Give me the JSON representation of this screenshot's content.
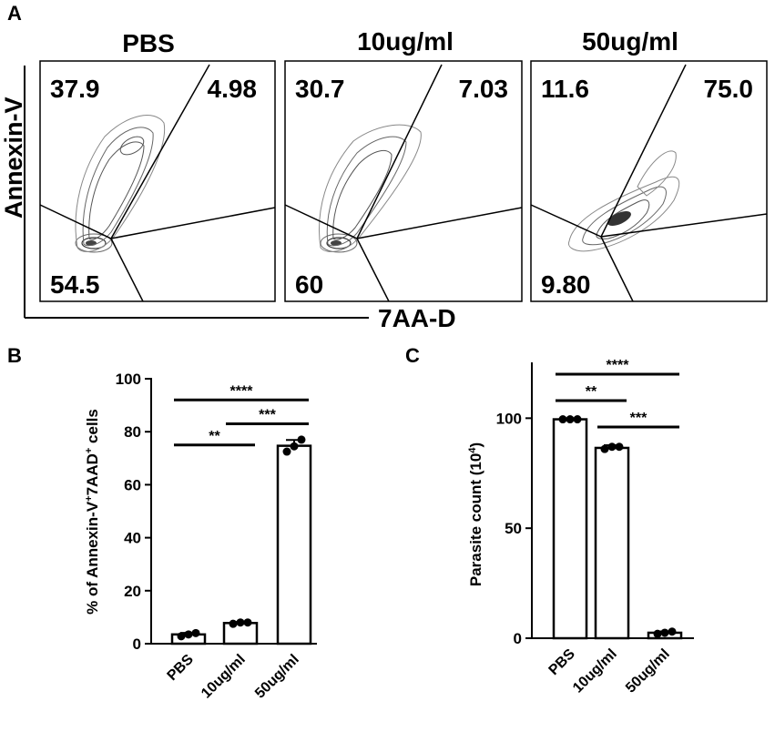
{
  "panel_letters": {
    "a": "A",
    "b": "B",
    "c": "C"
  },
  "flow": {
    "y_axis_label": "Annexin-V",
    "x_axis_label": "7AA-D",
    "panels": [
      {
        "title": "PBS",
        "q_ul": "37.9",
        "q_ur": "4.98",
        "q_ll": "54.5"
      },
      {
        "title": "10ug/ml",
        "q_ul": "30.7",
        "q_ur": "7.03",
        "q_ll": "60"
      },
      {
        "title": "50ug/ml",
        "q_ul": "11.6",
        "q_ur": "75.0",
        "q_ll": "9.80"
      }
    ]
  },
  "chart_data": [
    {
      "type": "bar",
      "panel": "B",
      "categories": [
        "PBS",
        "10ug/ml",
        "50ug/ml"
      ],
      "values": [
        3.5,
        7.8,
        74.7
      ],
      "error": [
        0.6,
        0.4,
        2.2
      ],
      "points": [
        [
          2.8,
          3.5,
          4.0
        ],
        [
          7.5,
          8.0,
          8.0
        ],
        [
          72.5,
          74.5,
          77.0
        ]
      ],
      "ylabel_main": "% of Annexin-V",
      "ylabel_sup1": "+",
      "ylabel_mid": "7AAD",
      "ylabel_sup2": "+",
      "ylabel_end": " cells",
      "ylim": [
        0,
        100
      ],
      "yticks": [
        "0",
        "20",
        "40",
        "60",
        "80",
        "100"
      ],
      "significance": [
        {
          "from": 0,
          "to": 2,
          "label": "****",
          "y": 92
        },
        {
          "from": 0,
          "to": 1,
          "label": "**",
          "y": 75
        },
        {
          "from": 1,
          "to": 2,
          "label": "***",
          "y": 83
        }
      ]
    },
    {
      "type": "bar",
      "panel": "C",
      "categories": [
        "PBS",
        "10ug/ml",
        "50ug/ml"
      ],
      "values": [
        99.5,
        86.5,
        2.5
      ],
      "error": [
        0.5,
        1.2,
        0.6
      ],
      "points": [
        [
          99.5,
          99.5,
          99.5
        ],
        [
          86,
          87,
          87
        ],
        [
          2,
          2.5,
          3
        ]
      ],
      "ylabel_main": "Parasite count  (10",
      "ylabel_sup": "4",
      "ylabel_end": ")",
      "ylim": [
        0,
        120
      ],
      "yticks": [
        "0",
        "50",
        "100"
      ],
      "significance": [
        {
          "from": 0,
          "to": 2,
          "label": "****",
          "y": 120
        },
        {
          "from": 0,
          "to": 1,
          "label": "**",
          "y": 108
        },
        {
          "from": 1,
          "to": 2,
          "label": "***",
          "y": 96
        }
      ]
    }
  ]
}
